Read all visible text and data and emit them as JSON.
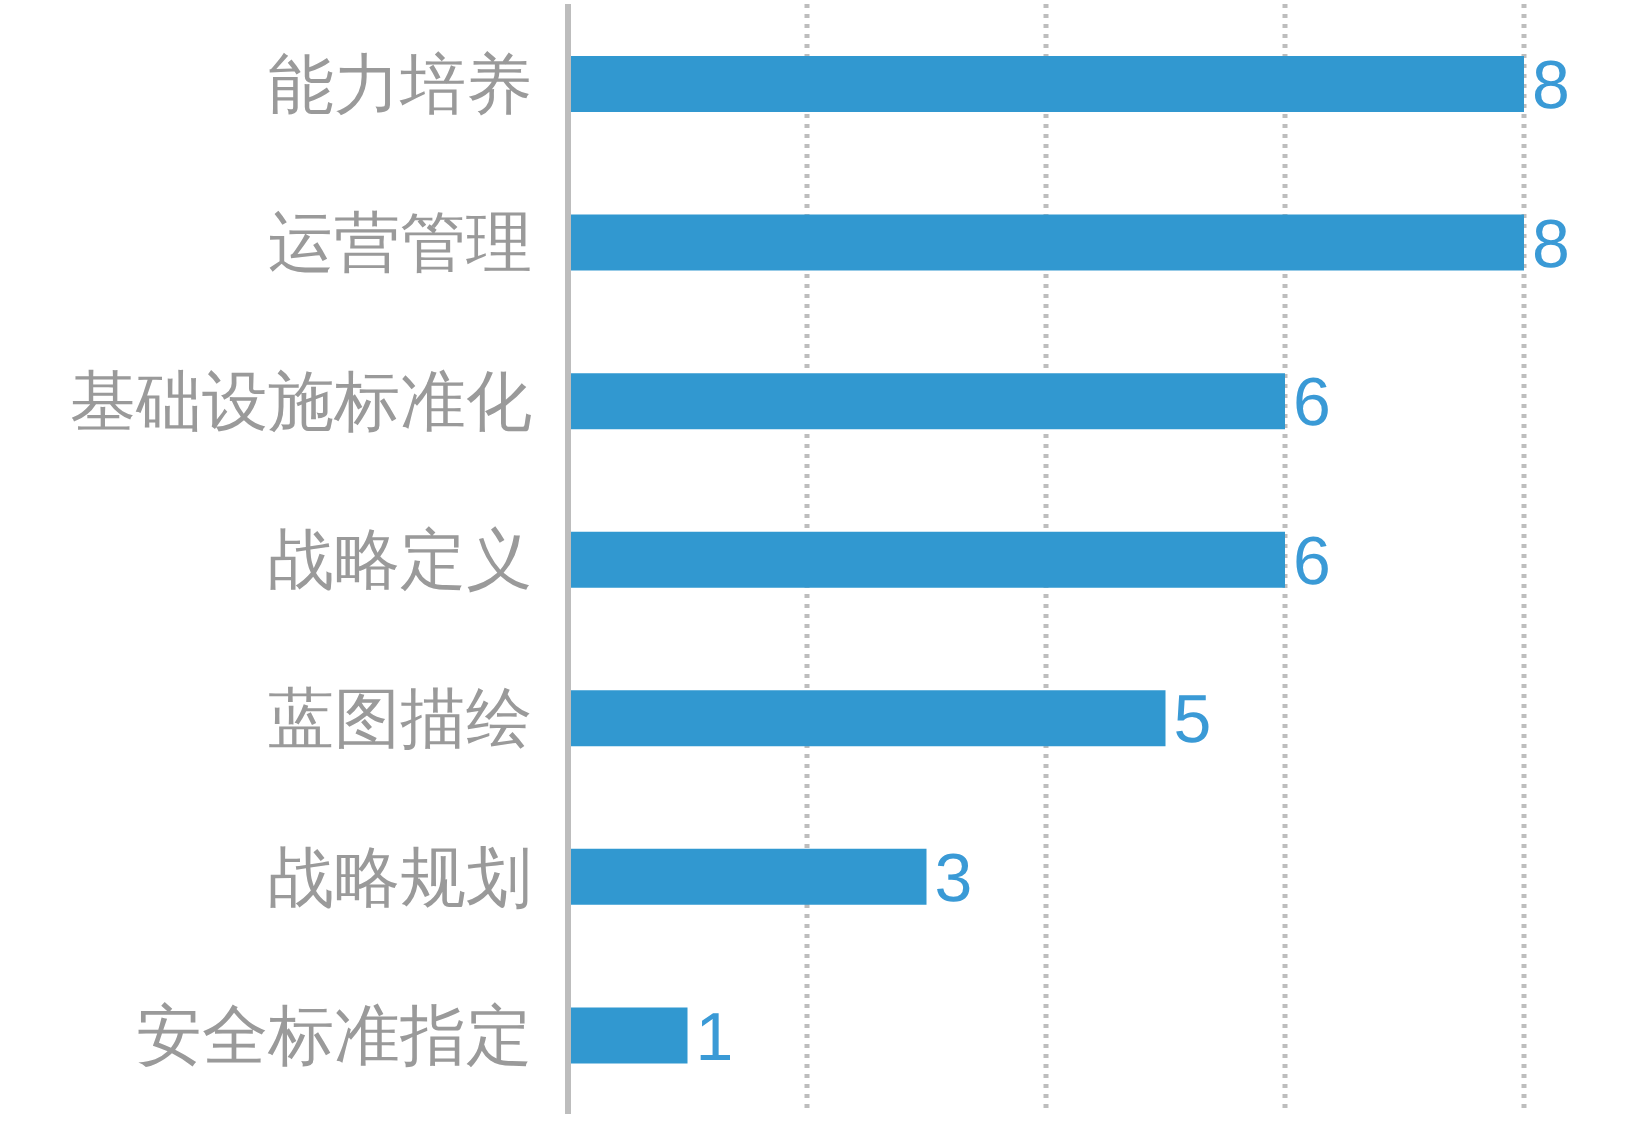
{
  "chart_data": {
    "type": "bar",
    "orientation": "horizontal",
    "categories": [
      "能力培养",
      "运营管理",
      "基础设施标准化",
      "战略定义",
      "蓝图描绘",
      "战略规划",
      "安全标准指定"
    ],
    "values": [
      8,
      8,
      6,
      6,
      5,
      3,
      1
    ],
    "color": "#3198d0",
    "xlim": [
      0,
      8
    ],
    "xticks": [
      {
        "value": 2,
        "label": null
      },
      {
        "value": 4,
        "label": null
      },
      {
        "value": 6,
        "label": null
      },
      {
        "value": 8,
        "label": null
      }
    ],
    "grid": "x",
    "tick_labels": "y",
    "data_labels": true
  }
}
